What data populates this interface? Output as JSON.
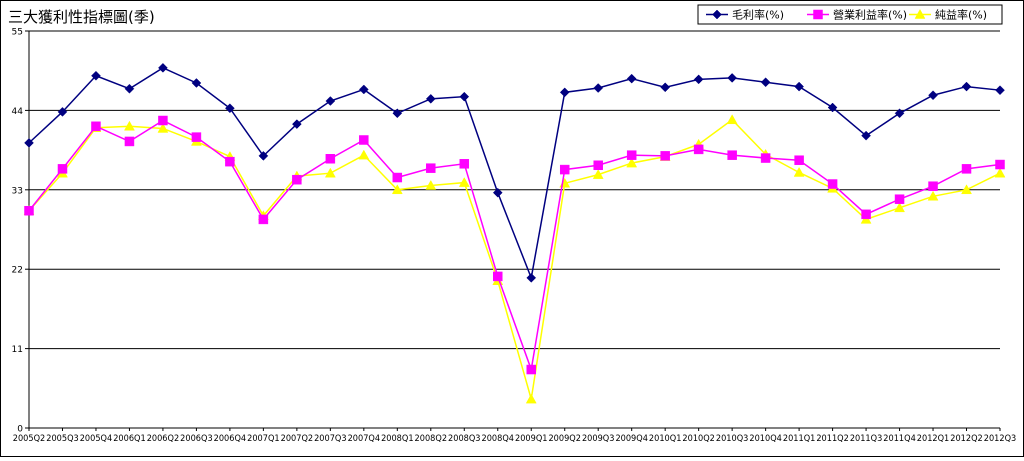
{
  "chart_data": {
    "type": "line",
    "title": "三大獲利性指標圖(季)",
    "xlabel": "",
    "ylabel": "",
    "ylim": [
      0,
      55
    ],
    "yticks": [
      0,
      11,
      22,
      33,
      44,
      55
    ],
    "grid": "horizontal",
    "legend_position": "top-right",
    "categories": [
      "2005Q2",
      "2005Q3",
      "2005Q4",
      "2006Q1",
      "2006Q2",
      "2006Q3",
      "2006Q4",
      "2007Q1",
      "2007Q2",
      "2007Q3",
      "2007Q4",
      "2008Q1",
      "2008Q2",
      "2008Q3",
      "2008Q4",
      "2009Q1",
      "2009Q2",
      "2009Q3",
      "2009Q4",
      "2010Q1",
      "2010Q2",
      "2010Q3",
      "2010Q4",
      "2011Q1",
      "2011Q2",
      "2011Q3",
      "2011Q4",
      "2012Q1",
      "2012Q2",
      "2012Q3"
    ],
    "series": [
      {
        "name": "毛利率(%)",
        "color": "#000080",
        "marker": "diamond",
        "values": [
          39.5,
          43.8,
          48.8,
          47.0,
          49.9,
          47.8,
          44.3,
          37.7,
          42.1,
          45.3,
          46.9,
          43.6,
          45.6,
          45.9,
          32.6,
          20.8,
          46.5,
          47.1,
          48.4,
          47.2,
          48.3,
          48.5,
          47.9,
          47.3,
          44.4,
          40.5,
          43.6,
          46.1,
          47.3,
          46.8
        ]
      },
      {
        "name": "營業利益率(%)",
        "color": "#ff00ff",
        "marker": "square",
        "values": [
          30.1,
          35.9,
          41.8,
          39.7,
          42.6,
          40.3,
          36.9,
          28.9,
          34.4,
          37.3,
          39.9,
          34.7,
          36.0,
          36.6,
          21.0,
          8.1,
          35.8,
          36.4,
          37.8,
          37.7,
          38.6,
          37.8,
          37.4,
          37.1,
          33.8,
          29.6,
          31.7,
          33.5,
          35.9,
          36.5
        ]
      },
      {
        "name": "純益率(%)",
        "color": "#ffff00",
        "marker": "triangle",
        "values": [
          30.1,
          35.3,
          41.6,
          41.8,
          41.5,
          39.7,
          37.6,
          29.4,
          34.9,
          35.3,
          37.8,
          33.0,
          33.6,
          34.0,
          20.4,
          4.0,
          33.9,
          35.1,
          36.7,
          37.6,
          39.3,
          42.7,
          37.9,
          35.4,
          33.2,
          28.9,
          30.5,
          32.1,
          33.0,
          35.3
        ]
      }
    ]
  }
}
